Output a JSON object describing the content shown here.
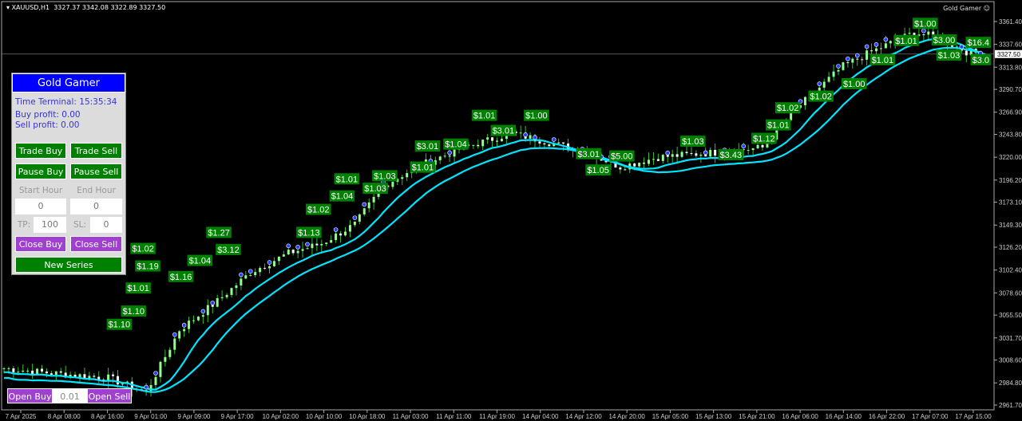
{
  "header": {
    "symbol": "XAUUSD,H1",
    "ohlc": "3327.37 3342.08 3322.89 3327.50",
    "brand": "Gold Gamer",
    "brand_icon": "smiley-icon"
  },
  "colors": {
    "background": "#000000",
    "bull": "#90ff90",
    "bear": "#ffffff",
    "ma": "#00e5ff",
    "profit_label": "#008000",
    "panel_title": "#0000ff",
    "green_button": "#008000",
    "purple_button": "#a040d0"
  },
  "panel": {
    "title": "Gold Gamer",
    "time_terminal": "Time Terminal: 15:35:34",
    "buy_profit": "Buy profit: 0.00",
    "sell_profit": "Sell profit: 0.00",
    "trade_buy": "Trade Buy",
    "trade_sell": "Trade Sell",
    "pause_buy": "Pause Buy",
    "pause_sell": "Pause Sell",
    "start_hour_label": "Start Hour",
    "end_hour_label": "End Hour",
    "start_hour": "0",
    "end_hour": "0",
    "tp_label": "TP:",
    "tp": "100",
    "sl_label": "SL:",
    "sl": "0",
    "close_buy": "Close Buy",
    "close_sell": "Close Sell",
    "new_series": "New Series"
  },
  "order_bar": {
    "open_buy": "Open Buy",
    "lot": "0.01",
    "open_sell": "Open Sell"
  },
  "price_axis": [
    "3361.40",
    "3337.60",
    "3313.80",
    "3290.70",
    "3266.90",
    "3243.80",
    "3220.00",
    "3196.20",
    "3173.10",
    "3149.30",
    "3126.20",
    "3102.40",
    "3078.60",
    "3055.50",
    "3031.70",
    "3008.60",
    "2984.80",
    "2961.70"
  ],
  "current_price": "3327.50",
  "time_axis": [
    "7 Apr 2025",
    "8 Apr 08:00",
    "8 Apr 16:00",
    "9 Apr 01:00",
    "9 Apr 09:00",
    "9 Apr 17:00",
    "10 Apr 02:00",
    "10 Apr 10:00",
    "10 Apr 18:00",
    "11 Apr 03:00",
    "11 Apr 11:00",
    "11 Apr 19:00",
    "14 Apr 04:00",
    "14 Apr 12:00",
    "14 Apr 20:00",
    "15 Apr 05:00",
    "15 Apr 13:00",
    "15 Apr 21:00",
    "16 Apr 06:00",
    "16 Apr 14:00",
    "16 Apr 22:00",
    "17 Apr 07:00",
    "17 Apr 15:00"
  ],
  "chart_data": {
    "type": "candlestick",
    "ylim": [
      2961.7,
      3361.4
    ],
    "close_path": [
      [
        0,
        3000
      ],
      [
        10,
        2995
      ],
      [
        22,
        2990
      ],
      [
        30,
        2975
      ],
      [
        37,
        3040
      ],
      [
        45,
        3070
      ],
      [
        52,
        3100
      ],
      [
        60,
        3120
      ],
      [
        67,
        3130
      ],
      [
        74,
        3150
      ],
      [
        80,
        3190
      ],
      [
        87,
        3210
      ],
      [
        97,
        3230
      ],
      [
        107,
        3245
      ],
      [
        113,
        3238
      ],
      [
        123,
        3225
      ],
      [
        130,
        3210
      ],
      [
        138,
        3220
      ],
      [
        150,
        3225
      ],
      [
        160,
        3230
      ],
      [
        167,
        3270
      ],
      [
        177,
        3315
      ],
      [
        183,
        3330
      ],
      [
        192,
        3350
      ],
      [
        197,
        3345
      ],
      [
        203,
        3330
      ],
      [
        207,
        3327.5
      ]
    ],
    "profit_labels": [
      {
        "text": "$1.10",
        "bar": 25,
        "price": 3058
      },
      {
        "text": "$1.10",
        "bar": 22,
        "price": 3050
      },
      {
        "text": "$1.01",
        "bar": 26,
        "price": 3082
      },
      {
        "text": "$1.19",
        "bar": 28,
        "price": 3105
      },
      {
        "text": "$1.02",
        "bar": 27,
        "price": 3100
      },
      {
        "text": "$1.16",
        "bar": 35,
        "price": 3094
      },
      {
        "text": "$1.04",
        "bar": 39,
        "price": 3105
      },
      {
        "text": "$1.27",
        "bar": 43,
        "price": 3140
      },
      {
        "text": "$3.12",
        "bar": 45,
        "price": 3128
      },
      {
        "text": "$1.13",
        "bar": 62,
        "price": 3140
      },
      {
        "text": "$1.02",
        "bar": 64,
        "price": 3164
      },
      {
        "text": "$1.04",
        "bar": 69,
        "price": 3178
      },
      {
        "text": "$1.01",
        "bar": 70,
        "price": 3190
      },
      {
        "text": "$1.03",
        "bar": 76,
        "price": 3186
      },
      {
        "text": "$1.03",
        "bar": 78,
        "price": 3199
      },
      {
        "text": "$1.01",
        "bar": 86,
        "price": 3208
      },
      {
        "text": "$3.01",
        "bar": 87,
        "price": 3230
      },
      {
        "text": "$1.04",
        "bar": 93,
        "price": 3232
      },
      {
        "text": "$1.01",
        "bar": 99,
        "price": 3262
      },
      {
        "text": "$3.01",
        "bar": 103,
        "price": 3252
      },
      {
        "text": "$1.00",
        "bar": 110,
        "price": 3262
      },
      {
        "text": "$3.01",
        "bar": 121,
        "price": 3222
      },
      {
        "text": "$1.05",
        "bar": 123,
        "price": 3205
      },
      {
        "text": "$5.00",
        "bar": 128,
        "price": 3208
      },
      {
        "text": "$1.03",
        "bar": 143,
        "price": 3235
      },
      {
        "text": "$3.43",
        "bar": 151,
        "price": 3221
      },
      {
        "text": "$1.12",
        "bar": 158,
        "price": 3238
      },
      {
        "text": "$1.01",
        "bar": 161,
        "price": 3252
      },
      {
        "text": "$1.02",
        "bar": 163,
        "price": 3264
      },
      {
        "text": "$1.02",
        "bar": 170,
        "price": 3282
      },
      {
        "text": "$1.00",
        "bar": 177,
        "price": 3295
      },
      {
        "text": "$1.01",
        "bar": 183,
        "price": 3320
      },
      {
        "text": "$1.01",
        "bar": 188,
        "price": 3340
      },
      {
        "text": "$1.00",
        "bar": 192,
        "price": 3352
      },
      {
        "text": "$3.00",
        "bar": 196,
        "price": 3358
      },
      {
        "text": "$1.03",
        "bar": 197,
        "price": 3348
      },
      {
        "text": "$16.4",
        "bar": 205,
        "price": 3338
      },
      {
        "text": "$3.0",
        "bar": 205,
        "price": 3320
      }
    ]
  }
}
